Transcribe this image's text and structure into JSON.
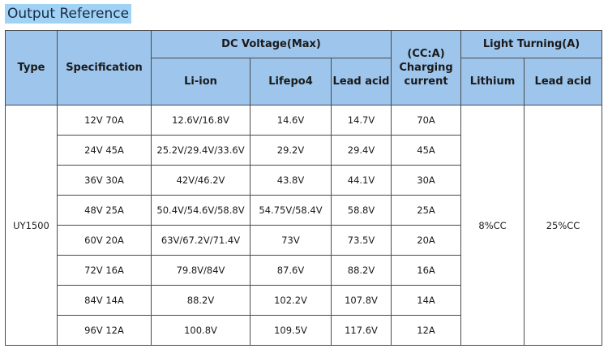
{
  "title": "Output Reference",
  "headers": {
    "type": "Type",
    "specification": "Specification",
    "dc_voltage": "DC Voltage(Max)",
    "li_ion": "Li-ion",
    "lifepo4": "Lifepo4",
    "lead_acid": "Lead acid",
    "charging_current_unit": "(CC:A)",
    "charging_current": "Charging current",
    "light_turning": "Light Turning(A)",
    "lithium": "Lithium",
    "lt_lead_acid": "Lead acid"
  },
  "type_value": "UY1500",
  "light_turning_values": {
    "lithium": "8%CC",
    "lead_acid": "25%CC"
  },
  "rows": [
    {
      "spec": "12V 70A",
      "li_ion": "12.6V/16.8V",
      "lifepo4": "14.6V",
      "lead_acid": "14.7V",
      "current": "70A"
    },
    {
      "spec": "24V 45A",
      "li_ion": "25.2V/29.4V/33.6V",
      "lifepo4": "29.2V",
      "lead_acid": "29.4V",
      "current": "45A"
    },
    {
      "spec": "36V 30A",
      "li_ion": "42V/46.2V",
      "lifepo4": "43.8V",
      "lead_acid": "44.1V",
      "current": "30A"
    },
    {
      "spec": "48V 25A",
      "li_ion": "50.4V/54.6V/58.8V",
      "lifepo4": "54.75V/58.4V",
      "lead_acid": "58.8V",
      "current": "25A"
    },
    {
      "spec": "60V 20A",
      "li_ion": "63V/67.2V/71.4V",
      "lifepo4": "73V",
      "lead_acid": "73.5V",
      "current": "20A"
    },
    {
      "spec": "72V 16A",
      "li_ion": "79.8V/84V",
      "lifepo4": "87.6V",
      "lead_acid": "88.2V",
      "current": "16A"
    },
    {
      "spec": "84V 14A",
      "li_ion": "88.2V",
      "lifepo4": "102.2V",
      "lead_acid": "107.8V",
      "current": "14A"
    },
    {
      "spec": "96V 12A",
      "li_ion": "100.8V",
      "lifepo4": "109.5V",
      "lead_acid": "117.6V",
      "current": "12A"
    }
  ]
}
